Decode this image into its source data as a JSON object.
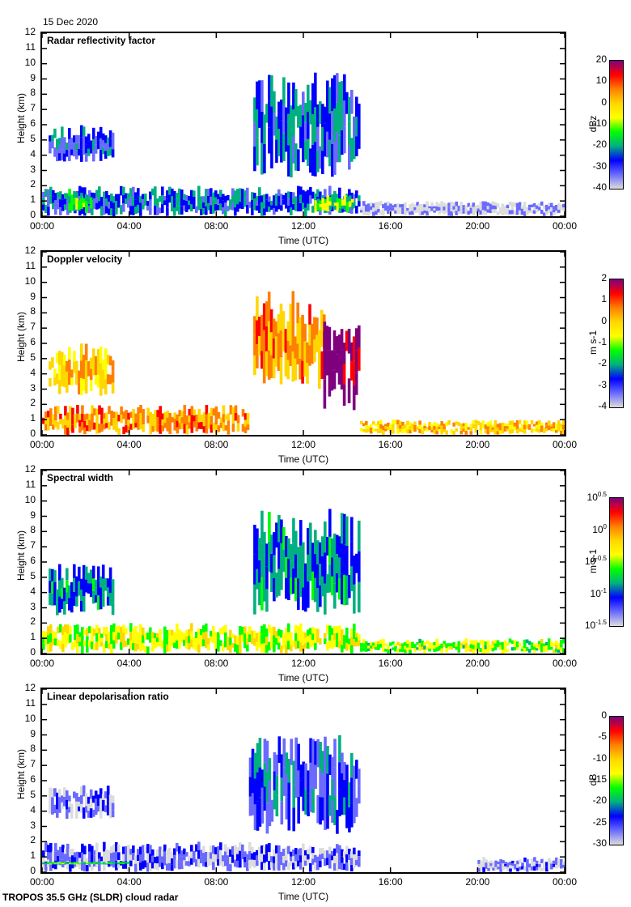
{
  "header": {
    "date": "15 Dec 2020"
  },
  "footer": {
    "instrument": "TROPOS 35.5 GHz (SLDR) cloud radar"
  },
  "chart_data": [
    {
      "type": "heatmap",
      "title": "Radar reflectivity factor",
      "xlabel": "Time (UTC)",
      "ylabel": "Height (km)",
      "xticks": [
        "00:00",
        "04:00",
        "08:00",
        "12:00",
        "16:00",
        "20:00",
        "00:00"
      ],
      "xlim_hours": [
        0,
        24
      ],
      "ylim": [
        0,
        12
      ],
      "yticks": [
        0,
        1,
        2,
        3,
        4,
        5,
        6,
        7,
        8,
        9,
        10,
        11,
        12
      ],
      "colorbar": {
        "label": "dBz",
        "range": [
          -40,
          20
        ],
        "ticks": [
          "20",
          "10",
          "0",
          "-10",
          "-20",
          "-30",
          "-40"
        ]
      },
      "features": [
        {
          "desc": "boundary layer echo",
          "t": [
            0,
            14.6
          ],
          "h": [
            0,
            2
          ],
          "value": -25
        },
        {
          "desc": "strong low-level cores",
          "t": [
            1.2,
            2.3
          ],
          "h": [
            0.2,
            1.8
          ],
          "value": -15
        },
        {
          "desc": "strong low-level cores",
          "t": [
            12.5,
            14.3
          ],
          "h": [
            0.2,
            1.4
          ],
          "value": -12
        },
        {
          "desc": "mid-level cloud",
          "t": [
            0.3,
            3.3
          ],
          "h": [
            3.5,
            6
          ],
          "value": -28
        },
        {
          "desc": "upper cloud fallstreaks",
          "t": [
            9.7,
            14.6
          ],
          "h": [
            2.5,
            9.5
          ],
          "value": -25
        },
        {
          "desc": "weak clutter",
          "t": [
            14.6,
            24
          ],
          "h": [
            0,
            1
          ],
          "value": -38
        }
      ]
    },
    {
      "type": "heatmap",
      "title": "Doppler velocity",
      "xlabel": "Time (UTC)",
      "ylabel": "Height (km)",
      "xticks": [
        "00:00",
        "04:00",
        "08:00",
        "12:00",
        "16:00",
        "20:00",
        "00:00"
      ],
      "xlim_hours": [
        0,
        24
      ],
      "ylim": [
        0,
        12
      ],
      "yticks": [
        0,
        1,
        2,
        3,
        4,
        5,
        6,
        7,
        8,
        9,
        10,
        11,
        12
      ],
      "colorbar": {
        "label": "m s-1",
        "range": [
          -4,
          2
        ],
        "ticks": [
          "2",
          "1",
          "0",
          "-1",
          "-2",
          "-3",
          "-4"
        ]
      },
      "features": [
        {
          "desc": "boundary layer",
          "t": [
            0,
            9.5
          ],
          "h": [
            0,
            2
          ],
          "value": 0.5
        },
        {
          "desc": "mid-level cloud",
          "t": [
            0.3,
            3.3
          ],
          "h": [
            2.5,
            6
          ],
          "value": 0
        },
        {
          "desc": "upper cloud",
          "t": [
            9.7,
            13
          ],
          "h": [
            3,
            9.5
          ],
          "value": 0.5
        },
        {
          "desc": "strong updraft region",
          "t": [
            12.8,
            14.6
          ],
          "h": [
            1.5,
            8
          ],
          "value": 2
        },
        {
          "desc": "low clutter",
          "t": [
            14.6,
            24
          ],
          "h": [
            0,
            1
          ],
          "value": 0
        }
      ]
    },
    {
      "type": "heatmap",
      "title": "Spectral width",
      "xlabel": "Time (UTC)",
      "ylabel": "Height (km)",
      "xticks": [
        "00:00",
        "04:00",
        "08:00",
        "12:00",
        "16:00",
        "20:00",
        "00:00"
      ],
      "xlim_hours": [
        0,
        24
      ],
      "ylim": [
        0,
        12
      ],
      "yticks": [
        0,
        1,
        2,
        3,
        4,
        5,
        6,
        7,
        8,
        9,
        10,
        11,
        12
      ],
      "colorbar": {
        "label": "m s-1",
        "range_log10": [
          -1.5,
          0.5
        ],
        "ticks": [
          "10^0.5",
          "10^0",
          "10^-0.5",
          "10^-1",
          "10^-1.5"
        ]
      },
      "features": [
        {
          "desc": "boundary layer",
          "t": [
            0,
            14.6
          ],
          "h": [
            0,
            2
          ],
          "value_log10": -0.4
        },
        {
          "desc": "mid-level cloud",
          "t": [
            0.3,
            3.3
          ],
          "h": [
            2.5,
            6
          ],
          "value_log10": -0.9
        },
        {
          "desc": "upper cloud",
          "t": [
            9.7,
            14.6
          ],
          "h": [
            2.5,
            9.5
          ],
          "value_log10": -0.9
        },
        {
          "desc": "low clutter",
          "t": [
            14.6,
            24
          ],
          "h": [
            0,
            1
          ],
          "value_log10": -0.5
        }
      ]
    },
    {
      "type": "heatmap",
      "title": "Linear depolarisation ratio",
      "xlabel": "Time (UTC)",
      "ylabel": "Height (km)",
      "xticks": [
        "00:00",
        "04:00",
        "08:00",
        "12:00",
        "16:00",
        "20:00",
        "00:00"
      ],
      "xlim_hours": [
        0,
        24
      ],
      "ylim": [
        0,
        12
      ],
      "yticks": [
        0,
        1,
        2,
        3,
        4,
        5,
        6,
        7,
        8,
        9,
        10,
        11,
        12
      ],
      "colorbar": {
        "label": "dB",
        "range": [
          -30,
          0
        ],
        "ticks": [
          "0",
          "-5",
          "-10",
          "-15",
          "-20",
          "-25",
          "-30"
        ]
      },
      "features": [
        {
          "desc": "boundary layer",
          "t": [
            0,
            14.6
          ],
          "h": [
            0,
            2
          ],
          "value": -27
        },
        {
          "desc": "melting/ice layer",
          "t": [
            0,
            4
          ],
          "h": [
            0.5,
            0.7
          ],
          "value": -18
        },
        {
          "desc": "mid-level cloud",
          "t": [
            0.3,
            3.3
          ],
          "h": [
            3.5,
            5.7
          ],
          "value": -27
        },
        {
          "desc": "upper cloud",
          "t": [
            9.5,
            14.6
          ],
          "h": [
            2.5,
            9
          ],
          "value": -24
        },
        {
          "desc": "low clutter",
          "t": [
            20,
            24
          ],
          "h": [
            0,
            1
          ],
          "value": -28
        }
      ]
    }
  ]
}
